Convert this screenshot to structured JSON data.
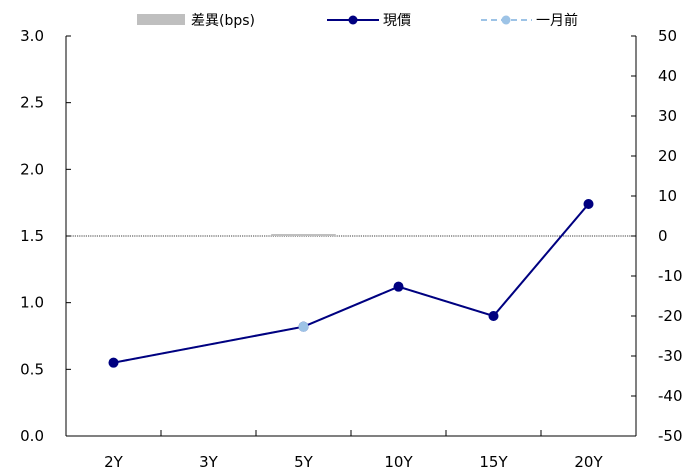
{
  "chart_data": {
    "type": "line",
    "categories": [
      "2Y",
      "3Y",
      "5Y",
      "10Y",
      "15Y",
      "20Y"
    ],
    "series": [
      {
        "name": "差異(bps)",
        "kind": "bar",
        "axis": "right",
        "color": "#bfbfbf",
        "values": [
          null,
          null,
          0.5,
          null,
          null,
          null
        ]
      },
      {
        "name": "現價",
        "kind": "line",
        "axis": "left",
        "color": "#000080",
        "values": [
          0.55,
          null,
          0.82,
          1.12,
          0.9,
          1.74
        ]
      },
      {
        "name": "一月前",
        "kind": "line",
        "axis": "left",
        "color": "#9dc3e6",
        "values": [
          0.55,
          null,
          0.82,
          1.12,
          0.9,
          1.74
        ]
      }
    ],
    "left_axis": {
      "min": 0.0,
      "max": 3.0,
      "ticks": [
        "0.0",
        "0.5",
        "1.0",
        "1.5",
        "2.0",
        "2.5",
        "3.0"
      ]
    },
    "right_axis": {
      "min": -50,
      "max": 50,
      "ticks": [
        "-50",
        "-40",
        "-30",
        "-20",
        "-10",
        "0",
        "10",
        "20",
        "30",
        "40",
        "50"
      ]
    },
    "title": "",
    "xlabel": "",
    "ylabel": "",
    "grid": false,
    "legend": "top-center"
  }
}
